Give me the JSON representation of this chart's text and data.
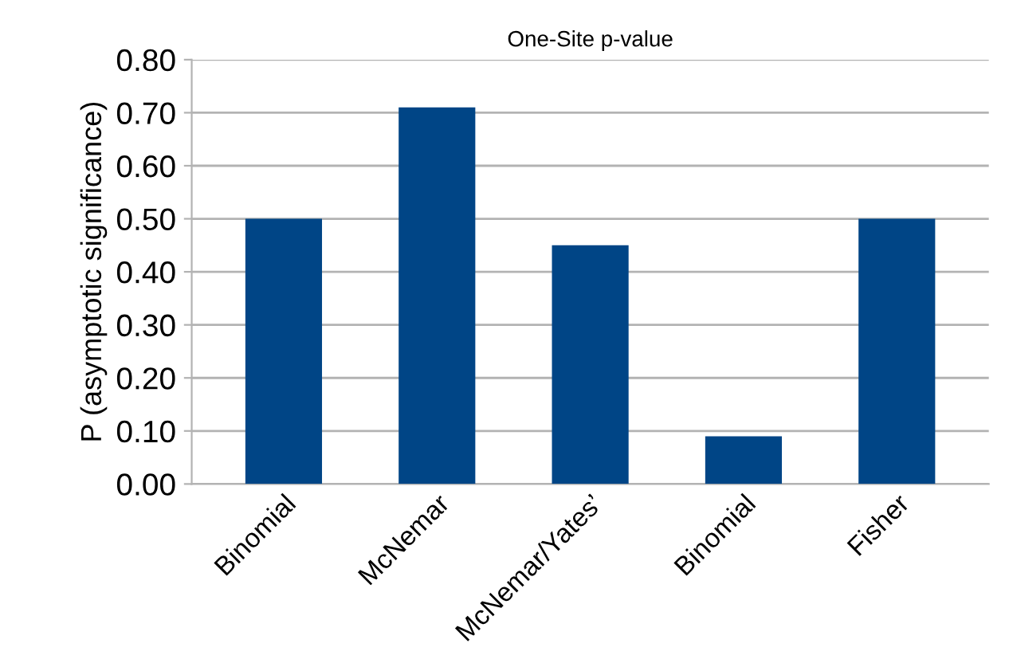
{
  "chart_data": {
    "type": "bar",
    "title": "One-Site p-value",
    "ylabel": "P (asymptotic significance)",
    "categories": [
      "Binomial",
      "McNemar",
      "McNemar/Yates’",
      "Binomial",
      "Fisher"
    ],
    "values": [
      0.5,
      0.71,
      0.45,
      0.09,
      0.5
    ],
    "color": "#004586",
    "ylim": [
      0,
      0.8
    ],
    "yticks": [
      {
        "value": 0,
        "label": "0.00"
      },
      {
        "value": 0.1,
        "label": "0.10"
      },
      {
        "value": 0.2,
        "label": "0.20"
      },
      {
        "value": 0.3,
        "label": "0.30"
      },
      {
        "value": 0.4,
        "label": "0.40"
      },
      {
        "value": 0.5,
        "label": "0.50"
      },
      {
        "value": 0.6,
        "label": "0.60"
      },
      {
        "value": 0.7,
        "label": "0.70"
      },
      {
        "value": 0.8,
        "label": "0.80"
      }
    ],
    "grid": "y",
    "legend": false
  }
}
